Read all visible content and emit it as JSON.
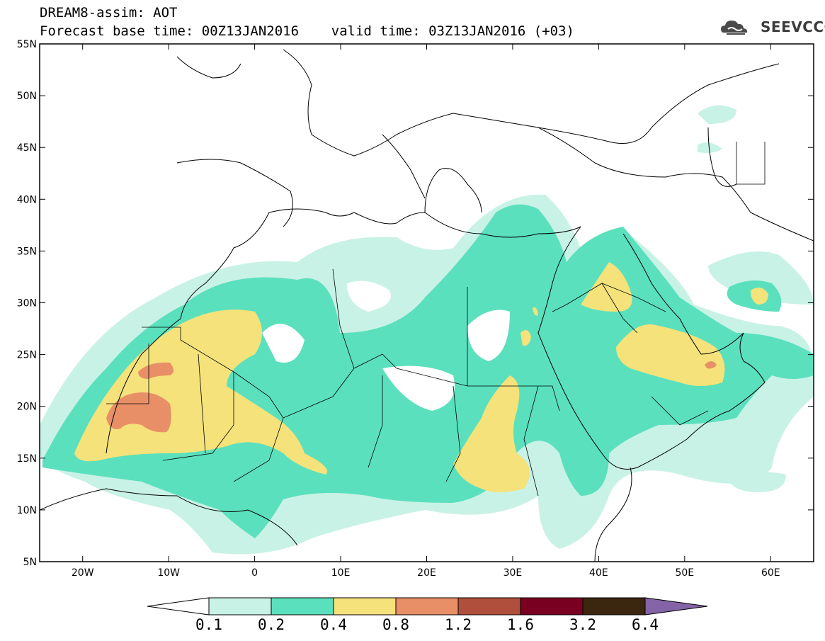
{
  "header": {
    "title_line1": "DREAM8-assim: AOT",
    "title_line2": "Forecast base time: 00Z13JAN2016    valid time: 03Z13JAN2016 (+03)",
    "logo_text": "SEEVCCC"
  },
  "map": {
    "lon_range": [
      -25,
      65
    ],
    "lat_range": [
      5,
      55
    ],
    "lat_ticks": [
      {
        "value": 55,
        "label": "55N"
      },
      {
        "value": 50,
        "label": "50N"
      },
      {
        "value": 45,
        "label": "45N"
      },
      {
        "value": 40,
        "label": "40N"
      },
      {
        "value": 35,
        "label": "35N"
      },
      {
        "value": 30,
        "label": "30N"
      },
      {
        "value": 25,
        "label": "25N"
      },
      {
        "value": 20,
        "label": "20N"
      },
      {
        "value": 15,
        "label": "15N"
      },
      {
        "value": 10,
        "label": "10N"
      },
      {
        "value": 5,
        "label": "5N"
      }
    ],
    "lon_ticks": [
      {
        "value": -20,
        "label": "20W"
      },
      {
        "value": -10,
        "label": "10W"
      },
      {
        "value": 0,
        "label": "0"
      },
      {
        "value": 10,
        "label": "10E"
      },
      {
        "value": 20,
        "label": "20E"
      },
      {
        "value": 30,
        "label": "30E"
      },
      {
        "value": 40,
        "label": "40E"
      },
      {
        "value": 50,
        "label": "50E"
      },
      {
        "value": 60,
        "label": "60E"
      }
    ]
  },
  "colorbar": {
    "colors": [
      "#ffffff",
      "#c9f2e6",
      "#5be0bd",
      "#f5e27a",
      "#e88f67",
      "#b04f3b",
      "#7a0021",
      "#3b2710",
      "#8464a6"
    ],
    "labels": [
      "0.1",
      "0.2",
      "0.4",
      "0.8",
      "1.2",
      "1.6",
      "3.2",
      "6.4"
    ]
  }
}
